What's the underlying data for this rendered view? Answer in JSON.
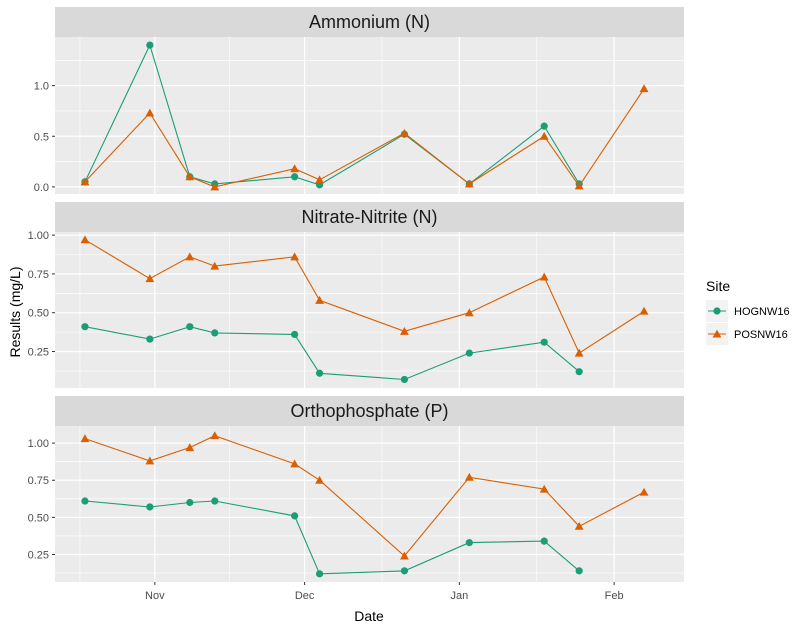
{
  "chart_data": {
    "type": "line",
    "xlabel": "Date",
    "ylabel": "Results (mg/L)",
    "x_ticks": [
      {
        "date": "2016-11-01",
        "label": "Nov"
      },
      {
        "date": "2016-12-01",
        "label": "Dec"
      },
      {
        "date": "2017-01-01",
        "label": "Jan"
      },
      {
        "date": "2017-02-01",
        "label": "Feb"
      }
    ],
    "xlim": [
      "2016-10-12",
      "2017-02-15"
    ],
    "legend": {
      "title": "Site",
      "position": "right",
      "entries": [
        {
          "name": "HOGNW16",
          "color": "#1b9e77",
          "marker": "circle"
        },
        {
          "name": "POSNW16",
          "color": "#d95f02",
          "marker": "triangle"
        }
      ]
    },
    "panels": [
      {
        "title": "Ammonium (N)",
        "ylim": [
          -0.07,
          1.48
        ],
        "y_ticks": [
          0.0,
          0.5,
          1.0
        ],
        "y_tick_labels": [
          "0.0",
          "0.5",
          "1.0"
        ],
        "series": [
          {
            "name": "HOGNW16",
            "points": [
              [
                "2016-10-18",
                0.05
              ],
              [
                "2016-10-31",
                1.4
              ],
              [
                "2016-11-08",
                0.1
              ],
              [
                "2016-11-13",
                0.03
              ],
              [
                "2016-11-29",
                0.1
              ],
              [
                "2016-12-04",
                0.02
              ],
              [
                "2016-12-21",
                0.52
              ],
              [
                "2017-01-03",
                0.03
              ],
              [
                "2017-01-18",
                0.6
              ],
              [
                "2017-01-25",
                0.03
              ]
            ]
          },
          {
            "name": "POSNW16",
            "points": [
              [
                "2016-10-18",
                0.05
              ],
              [
                "2016-10-31",
                0.73
              ],
              [
                "2016-11-08",
                0.1
              ],
              [
                "2016-11-13",
                0.0
              ],
              [
                "2016-11-29",
                0.18
              ],
              [
                "2016-12-04",
                0.07
              ],
              [
                "2016-12-21",
                0.53
              ],
              [
                "2017-01-03",
                0.03
              ],
              [
                "2017-01-18",
                0.5
              ],
              [
                "2017-01-25",
                0.01
              ],
              [
                "2017-02-07",
                0.97
              ]
            ]
          }
        ]
      },
      {
        "title": "Nitrate-Nitrite (N)",
        "ylim": [
          0.015,
          1.02
        ],
        "y_ticks": [
          0.25,
          0.5,
          0.75,
          1.0
        ],
        "y_tick_labels": [
          "0.25",
          "0.50",
          "0.75",
          "1.00"
        ],
        "series": [
          {
            "name": "HOGNW16",
            "points": [
              [
                "2016-10-18",
                0.41
              ],
              [
                "2016-10-31",
                0.33
              ],
              [
                "2016-11-08",
                0.41
              ],
              [
                "2016-11-13",
                0.37
              ],
              [
                "2016-11-29",
                0.36
              ],
              [
                "2016-12-04",
                0.11
              ],
              [
                "2016-12-21",
                0.07
              ],
              [
                "2017-01-03",
                0.24
              ],
              [
                "2017-01-18",
                0.31
              ],
              [
                "2017-01-25",
                0.12
              ]
            ]
          },
          {
            "name": "POSNW16",
            "points": [
              [
                "2016-10-18",
                0.97
              ],
              [
                "2016-10-31",
                0.72
              ],
              [
                "2016-11-08",
                0.86
              ],
              [
                "2016-11-13",
                0.8
              ],
              [
                "2016-11-29",
                0.86
              ],
              [
                "2016-12-04",
                0.58
              ],
              [
                "2016-12-21",
                0.38
              ],
              [
                "2017-01-03",
                0.5
              ],
              [
                "2017-01-18",
                0.73
              ],
              [
                "2017-01-25",
                0.24
              ],
              [
                "2017-02-07",
                0.51
              ]
            ]
          }
        ]
      },
      {
        "title": "Orthophosphate (P)",
        "ylim": [
          0.065,
          1.115
        ],
        "y_ticks": [
          0.25,
          0.5,
          0.75,
          1.0
        ],
        "y_tick_labels": [
          "0.25",
          "0.50",
          "0.75",
          "1.00"
        ],
        "series": [
          {
            "name": "HOGNW16",
            "points": [
              [
                "2016-10-18",
                0.61
              ],
              [
                "2016-10-31",
                0.57
              ],
              [
                "2016-11-08",
                0.6
              ],
              [
                "2016-11-13",
                0.61
              ],
              [
                "2016-11-29",
                0.51
              ],
              [
                "2016-12-04",
                0.12
              ],
              [
                "2016-12-21",
                0.14
              ],
              [
                "2017-01-03",
                0.33
              ],
              [
                "2017-01-18",
                0.34
              ],
              [
                "2017-01-25",
                0.14
              ]
            ]
          },
          {
            "name": "POSNW16",
            "points": [
              [
                "2016-10-18",
                1.03
              ],
              [
                "2016-10-31",
                0.88
              ],
              [
                "2016-11-08",
                0.97
              ],
              [
                "2016-11-13",
                1.05
              ],
              [
                "2016-11-29",
                0.86
              ],
              [
                "2016-12-04",
                0.75
              ],
              [
                "2016-12-21",
                0.24
              ],
              [
                "2017-01-03",
                0.77
              ],
              [
                "2017-01-18",
                0.69
              ],
              [
                "2017-01-25",
                0.44
              ],
              [
                "2017-02-07",
                0.67
              ]
            ]
          }
        ]
      }
    ]
  }
}
